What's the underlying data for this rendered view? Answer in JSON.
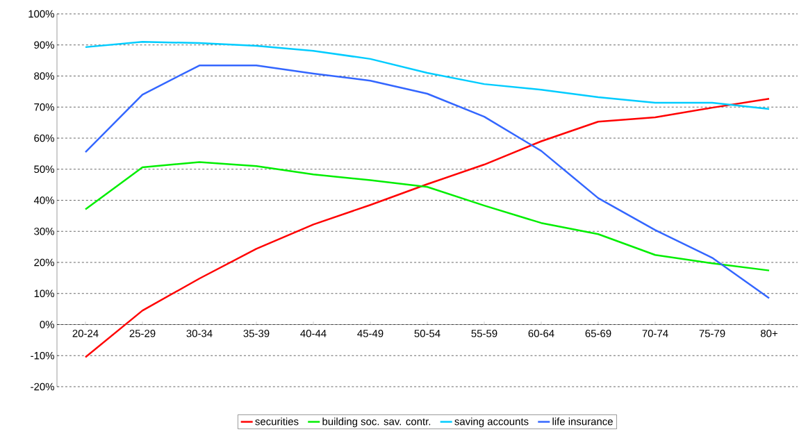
{
  "chart_data": {
    "type": "line",
    "categories": [
      "20-24",
      "25-29",
      "30-34",
      "35-39",
      "40-44",
      "45-49",
      "50-54",
      "55-59",
      "60-64",
      "65-69",
      "70-74",
      "75-79",
      "80+"
    ],
    "series": [
      {
        "name": "securities",
        "color": "#ff0000",
        "values": [
          -10.5,
          4.5,
          14.8,
          24.4,
          32.2,
          38.5,
          45.2,
          51.5,
          59,
          65.3,
          66.7,
          69.8,
          72.7
        ]
      },
      {
        "name": "building soc. sav. contr.",
        "color": "#00ee00",
        "values": [
          37.1,
          50.6,
          52.3,
          51,
          48.3,
          46.5,
          44.3,
          38.3,
          32.7,
          29.1,
          22.4,
          19.7,
          17.4
        ]
      },
      {
        "name": "saving accounts",
        "color": "#00ccff",
        "values": [
          89.3,
          91,
          90.6,
          89.7,
          88.1,
          85.5,
          81,
          77.4,
          75.6,
          73.2,
          71.4,
          71.4,
          69.4
        ]
      },
      {
        "name": "life insurance",
        "color": "#3366ff",
        "values": [
          55.5,
          74,
          83.4,
          83.4,
          80.8,
          78.5,
          74.3,
          66.9,
          55.9,
          40.7,
          30.4,
          21.5,
          8.5
        ]
      }
    ],
    "ylim": [
      -20,
      100
    ],
    "yticks": [
      {
        "value": -20,
        "label": "-20%"
      },
      {
        "value": -10,
        "label": "-10%"
      },
      {
        "value": 0,
        "label": "0%"
      },
      {
        "value": 10,
        "label": "10%"
      },
      {
        "value": 20,
        "label": "20%"
      },
      {
        "value": 30,
        "label": "30%"
      },
      {
        "value": 40,
        "label": "40%"
      },
      {
        "value": 50,
        "label": "50%"
      },
      {
        "value": 60,
        "label": "60%"
      },
      {
        "value": 70,
        "label": "70%"
      },
      {
        "value": 80,
        "label": "80%"
      },
      {
        "value": 90,
        "label": "90%"
      },
      {
        "value": 100,
        "label": "100%"
      }
    ],
    "grid": "y",
    "legend": "bottom",
    "marker": "none",
    "line_style": "solid"
  }
}
